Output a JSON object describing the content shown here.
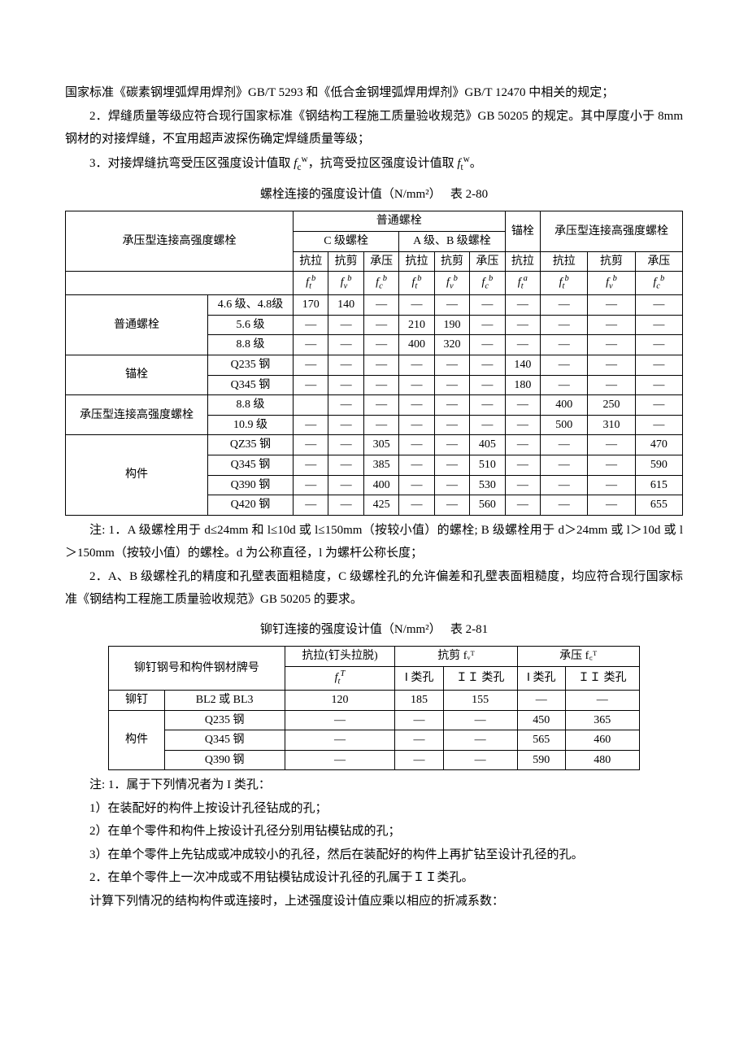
{
  "para1": "国家标准《碳素钢埋弧焊用焊剂》GB/T 5293 和《低合金钢埋弧焊用焊剂》GB/T 12470 中相关的规定；",
  "para2": "2．焊缝质量等级应符合现行国家标准《钢结构工程施工质量验收规范》GB 50205 的规定。其中厚度小于 8mm 钢材的对接焊缝，不宜用超声波探伤确定焊缝质量等级；",
  "para3_pre": "3．对接焊缝抗弯受压区强度设计值取 ",
  "para3_mid": "，抗弯受拉区强度设计值取 ",
  "para3_end": "。",
  "t1_title": "螺栓连接的强度设计值（N/mm²）　 表 2-80",
  "t1": {
    "h_rowlabel": "承压型连接高强度螺栓",
    "h_putong": "普通螺栓",
    "h_cji": "C 级螺栓",
    "h_abji": "A 级、B 级螺栓",
    "h_mao": "锚栓",
    "h_cyx": "承压型连接高强度螺栓",
    "lbl_kangla": "抗拉",
    "lbl_kangjian": "抗剪",
    "lbl_chengya": "承压",
    "sym_ftb": "fₜᵇ",
    "sym_fvb": "fᵥᵇ",
    "sym_fcb": "f꜀ᵇ",
    "sym_fta": "fₜᵃ",
    "row_groups": [
      {
        "label": "普通螺栓",
        "rows": [
          {
            "sub": "4.6 级、4.8级",
            "cells": [
              "170",
              "140",
              "—",
              "—",
              "—",
              "—",
              "—",
              "—",
              "—",
              "—"
            ]
          },
          {
            "sub": "5.6 级",
            "cells": [
              "—",
              "—",
              "—",
              "210",
              "190",
              "—",
              "—",
              "—",
              "—",
              "—"
            ]
          },
          {
            "sub": "8.8 级",
            "cells": [
              "—",
              "—",
              "—",
              "400",
              "320",
              "—",
              "—",
              "—",
              "—",
              "—"
            ]
          }
        ]
      },
      {
        "label": "锚栓",
        "rows": [
          {
            "sub": "Q235 钢",
            "cells": [
              "—",
              "—",
              "—",
              "—",
              "—",
              "—",
              "140",
              "—",
              "—",
              "—"
            ]
          },
          {
            "sub": "Q345 钢",
            "cells": [
              "—",
              "—",
              "—",
              "—",
              "—",
              "—",
              "180",
              "—",
              "—",
              "—"
            ]
          }
        ]
      },
      {
        "label": "承压型连接高强度螺栓",
        "rows": [
          {
            "sub": "8.8 级",
            "cells": [
              "",
              "—",
              "—",
              "—",
              "—",
              "—",
              "—",
              "400",
              "250",
              "—"
            ]
          },
          {
            "sub": "10.9 级",
            "cells": [
              "—",
              "—",
              "—",
              "—",
              "—",
              "—",
              "—",
              "500",
              "310",
              "—"
            ]
          }
        ]
      },
      {
        "label": "构件",
        "rows": [
          {
            "sub": "QZ35 钢",
            "cells": [
              "—",
              "—",
              "305",
              "—",
              "—",
              "405",
              "—",
              "—",
              "—",
              "470"
            ]
          },
          {
            "sub": "Q345 钢",
            "cells": [
              "—",
              "—",
              "385",
              "—",
              "—",
              "510",
              "—",
              "—",
              "—",
              "590"
            ]
          },
          {
            "sub": "Q390 钢",
            "cells": [
              "—",
              "—",
              "400",
              "—",
              "—",
              "530",
              "—",
              "—",
              "—",
              "615"
            ]
          },
          {
            "sub": "Q420 钢",
            "cells": [
              "—",
              "—",
              "425",
              "—",
              "—",
              "560",
              "—",
              "—",
              "—",
              "655"
            ]
          }
        ]
      }
    ]
  },
  "t1_notes": [
    "注: 1．A 级螺栓用于 d≤24mm 和 l≤10d 或 l≤150mm（按较小值）的螺栓; B 级螺栓用于 d＞24mm 或 l＞10d 或 l＞150mm（按较小值）的螺栓。d 为公称直径，l 为螺杆公称长度；",
    "2．A、B 级螺栓孔的精度和孔壁表面粗糙度，C 级螺栓孔的允许偏差和孔壁表面粗糙度，均应符合现行国家标准《钢结构工程施工质量验收规范》GB 50205 的要求。"
  ],
  "t2_title": "铆钉连接的强度设计值（N/mm²）　 表 2-81",
  "t2": {
    "h_maoding": "铆钉钢号和构件钢材牌号",
    "h_kangla": "抗拉(钉头拉脱)",
    "h_kj_sym": "抗剪 fᵥᵀ",
    "h_cy_sym": "承压 f꜀ᵀ",
    "h_ft_sym": "fₜᵀ",
    "h_I": "Ⅰ 类孔",
    "h_II": "ＩＩ 类孔",
    "rows": [
      {
        "g": "铆钉",
        "sub": "BL2 或 BL3",
        "cells": [
          "120",
          "185",
          "155",
          "—",
          "—"
        ]
      }
    ],
    "gj_label": "构件",
    "gj_rows": [
      {
        "sub": "Q235 钢",
        "cells": [
          "—",
          "—",
          "—",
          "450",
          "365"
        ]
      },
      {
        "sub": "Q345 钢",
        "cells": [
          "—",
          "—",
          "—",
          "565",
          "460"
        ]
      },
      {
        "sub": "Q390 钢",
        "cells": [
          "—",
          "—",
          "—",
          "590",
          "480"
        ]
      }
    ]
  },
  "t2_notes": [
    "注: 1．属于下列情况者为 I 类孔：",
    "1）在装配好的构件上按设计孔径钻成的孔；",
    "2）在单个零件和构件上按设计孔径分别用钻模钻成的孔；",
    "3）在单个零件上先钻成或冲成较小的孔径，然后在装配好的构件上再扩钻至设计孔径的孔。",
    "2．在单个零件上一次冲成或不用钻模钻成设计孔径的孔属于ＩＩ类孔。"
  ],
  "final": "计算下列情况的结构构件或连接时，上述强度设计值应乘以相应的折减系数："
}
